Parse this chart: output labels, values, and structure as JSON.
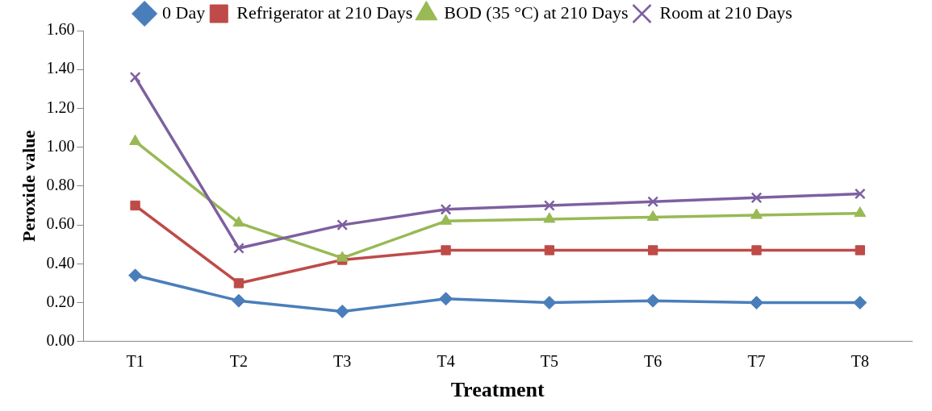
{
  "chart_data": {
    "type": "line",
    "xlabel": "Treatment",
    "ylabel": "Peroxide value",
    "categories": [
      "T1",
      "T2",
      "T3",
      "T4",
      "T5",
      "T6",
      "T7",
      "T8"
    ],
    "series": [
      {
        "name": "0 Day",
        "color": "#4a7ebb",
        "marker": "diamond",
        "values": [
          0.34,
          0.21,
          0.155,
          0.22,
          0.2,
          0.21,
          0.2,
          0.2
        ]
      },
      {
        "name": "Refrigerator at 210 Days",
        "color": "#be4b48",
        "marker": "square",
        "values": [
          0.7,
          0.3,
          0.42,
          0.47,
          0.47,
          0.47,
          0.47,
          0.47
        ]
      },
      {
        "name": "BOD (35 °C) at 210 Days",
        "color": "#98b954",
        "marker": "triangle",
        "values": [
          1.03,
          0.61,
          0.43,
          0.62,
          0.63,
          0.64,
          0.65,
          0.66
        ]
      },
      {
        "name": "Room at 210 Days",
        "color": "#7d60a0",
        "marker": "cross",
        "values": [
          1.36,
          0.48,
          0.6,
          0.68,
          0.7,
          0.72,
          0.74,
          0.76
        ]
      }
    ],
    "ylim": [
      0,
      1.6
    ],
    "yticks": [
      {
        "value": 0,
        "label": "0.00"
      },
      {
        "value": 0.2,
        "label": "0.20"
      },
      {
        "value": 0.4,
        "label": "0.40"
      },
      {
        "value": 0.6,
        "label": "0.60"
      },
      {
        "value": 0.8,
        "label": "0.80"
      },
      {
        "value": 1.0,
        "label": "1.00"
      },
      {
        "value": 1.2,
        "label": "1.20"
      },
      {
        "value": 1.4,
        "label": "1.40"
      },
      {
        "value": 1.6,
        "label": "1.60"
      }
    ],
    "grid": false,
    "legend": "top",
    "line_style": "solid"
  }
}
